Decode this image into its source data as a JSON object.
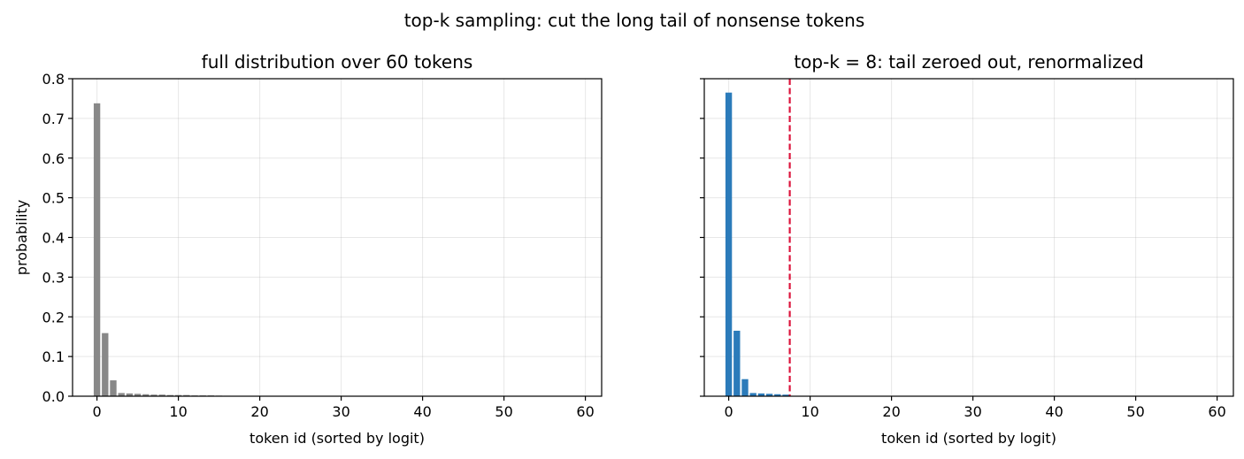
{
  "suptitle": "top-k sampling: cut the long tail of nonsense tokens",
  "chart_data": [
    {
      "type": "bar",
      "title": "full distribution over 60 tokens",
      "xlabel": "token id (sorted by logit)",
      "ylabel": "probability",
      "xlim": [
        -3,
        62
      ],
      "ylim": [
        0,
        0.8
      ],
      "xticks": [
        0,
        10,
        20,
        30,
        40,
        50,
        60
      ],
      "yticks": [
        0.0,
        0.1,
        0.2,
        0.3,
        0.4,
        0.5,
        0.6,
        0.7,
        0.8
      ],
      "grid": true,
      "color": "#888888",
      "x": [
        0,
        1,
        2,
        3,
        4,
        5,
        6,
        7,
        8,
        9,
        10,
        11,
        12,
        13,
        14,
        15,
        16,
        17,
        18,
        19,
        20,
        21,
        22,
        23,
        24,
        25,
        26,
        27,
        28,
        29,
        30,
        31,
        32,
        33,
        34,
        35,
        36,
        37,
        38,
        39,
        40,
        41,
        42,
        43,
        44,
        45,
        46,
        47,
        48,
        49,
        50,
        51,
        52,
        53,
        54,
        55,
        56,
        57,
        58,
        59
      ],
      "values": [
        0.738,
        0.159,
        0.04,
        0.008,
        0.007,
        0.006,
        0.005,
        0.004,
        0.004,
        0.003,
        0.003,
        0.003,
        0.002,
        0.002,
        0.002,
        0.0015,
        0.0012,
        0.001,
        0.0009,
        0.0008,
        0.0007,
        0.0006,
        0.0006,
        0.0005,
        0.0005,
        0.0004,
        0.0004,
        0.0004,
        0.0003,
        0.0003,
        0.0003,
        0.0003,
        0.0002,
        0.0002,
        0.0002,
        0.0002,
        0.0002,
        0.0002,
        0.0001,
        0.0001,
        0.0001,
        0.0001,
        0.0001,
        0.0001,
        0.0001,
        0.0001,
        0.0001,
        0.0001,
        0.0001,
        0.0001,
        0.0001,
        0.0001,
        0.0001,
        0.0001,
        0.0001,
        0.0001,
        0.0001,
        0.0001,
        0.0001,
        0.0001
      ]
    },
    {
      "type": "bar",
      "title": "top-k = 8: tail zeroed out, renormalized",
      "xlabel": "token id (sorted by logit)",
      "ylabel": "",
      "xlim": [
        -3,
        62
      ],
      "ylim": [
        0,
        0.8
      ],
      "xticks": [
        0,
        10,
        20,
        30,
        40,
        50,
        60
      ],
      "yticks": [
        0.0,
        0.1,
        0.2,
        0.3,
        0.4,
        0.5,
        0.6,
        0.7,
        0.8
      ],
      "ytick_labels_visible": false,
      "grid": true,
      "color": "#2b7bba",
      "cutoff": {
        "x": 7.5,
        "color": "#dc143c",
        "style": "dashed"
      },
      "x": [
        0,
        1,
        2,
        3,
        4,
        5,
        6,
        7,
        8,
        9,
        10,
        11,
        12,
        13,
        14,
        15,
        16,
        17,
        18,
        19,
        20,
        21,
        22,
        23,
        24,
        25,
        26,
        27,
        28,
        29,
        30,
        31,
        32,
        33,
        34,
        35,
        36,
        37,
        38,
        39,
        40,
        41,
        42,
        43,
        44,
        45,
        46,
        47,
        48,
        49,
        50,
        51,
        52,
        53,
        54,
        55,
        56,
        57,
        58,
        59
      ],
      "values": [
        0.765,
        0.165,
        0.043,
        0.008,
        0.007,
        0.006,
        0.005,
        0.004,
        0,
        0,
        0,
        0,
        0,
        0,
        0,
        0,
        0,
        0,
        0,
        0,
        0,
        0,
        0,
        0,
        0,
        0,
        0,
        0,
        0,
        0,
        0,
        0,
        0,
        0,
        0,
        0,
        0,
        0,
        0,
        0,
        0,
        0,
        0,
        0,
        0,
        0,
        0,
        0,
        0,
        0,
        0,
        0,
        0,
        0,
        0,
        0,
        0,
        0,
        0,
        0
      ]
    }
  ]
}
